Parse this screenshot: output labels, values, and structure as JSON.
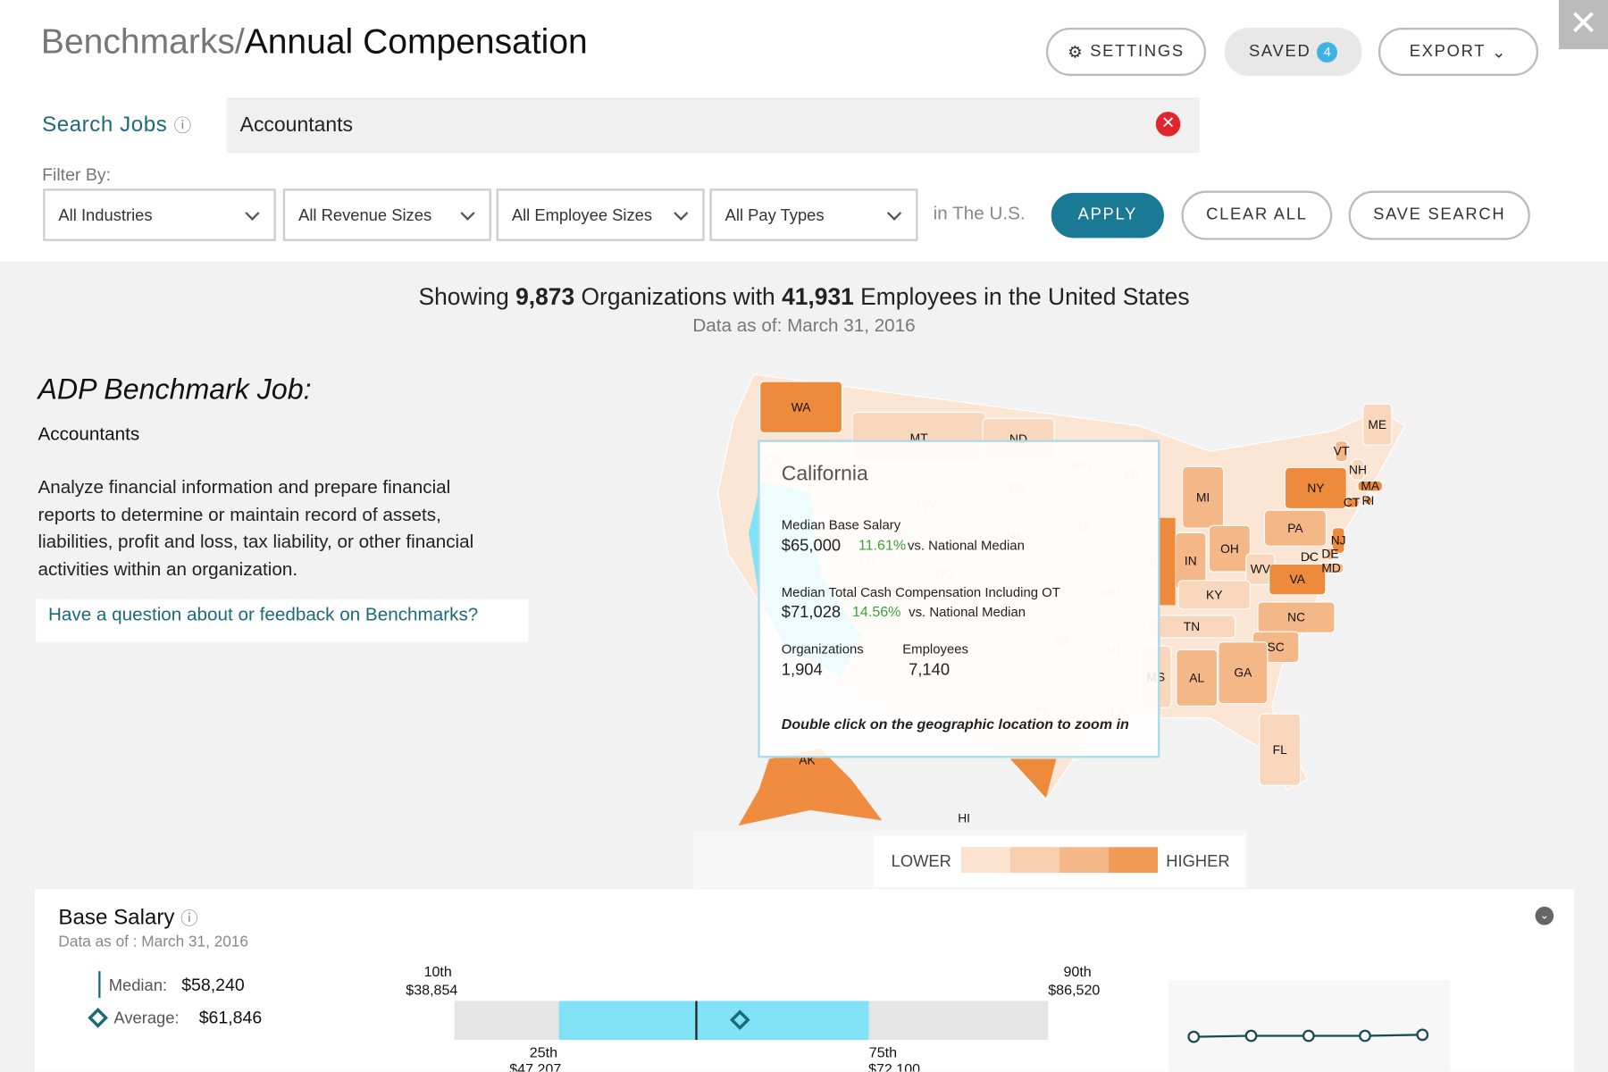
{
  "header": {
    "breadcrumb": "Benchmarks/",
    "title": "Annual Compensation",
    "settings": "SETTINGS",
    "saved": "SAVED",
    "saved_count": 4,
    "export": "EXPORT"
  },
  "search": {
    "label": "Search Jobs",
    "query": "Accountants"
  },
  "filters": {
    "label": "Filter By:",
    "dropdowns": [
      "All Industries",
      "All Revenue Sizes",
      "All Employee Sizes",
      "All Pay Types"
    ],
    "location": "in The U.S.",
    "apply": "APPLY",
    "clear": "CLEAR ALL",
    "save": "SAVE SEARCH"
  },
  "summary": {
    "parts": [
      "Showing",
      "9,873",
      "Organizations with",
      "41,931",
      "Employees in the United States"
    ],
    "date_label": "Data as of:",
    "date": "March 31, 2016"
  },
  "job": {
    "heading": "ADP Benchmark Job:",
    "name": "Accountants",
    "description": "Analyze financial information and prepare financial reports to determine or maintain record of assets, liabilities, profit and loss, tax liability, or other financial activities within an organization.",
    "feedback": "Have a question about or feedback on Benchmarks?"
  },
  "map": {
    "states": [
      "WA",
      "MT",
      "ND",
      "ME",
      "VT",
      "NH",
      "MA",
      "CT",
      "RI",
      "NY",
      "MI",
      "PA",
      "NJ",
      "DE",
      "DC",
      "MD",
      "OH",
      "IN",
      "WV",
      "VA",
      "KY",
      "NC",
      "TN",
      "SC",
      "AL",
      "GA",
      "FL",
      "AK",
      "HI",
      "MS",
      "OR",
      "MN",
      "WI",
      "SD",
      "WY",
      "IA",
      "NE",
      "UT",
      "CO",
      "MO",
      "CA",
      "AZ",
      "OK",
      "AR",
      "TX",
      "LA",
      "IL"
    ],
    "tooltip": {
      "state": "California",
      "base_label": "Median Base Salary",
      "base_value": "$65,000",
      "base_diff": "11.61%",
      "base_vs": "vs. National Median",
      "cash_label": "Median Total Cash Compensation Including OT",
      "cash_value": "$71,028",
      "cash_diff": "14.56%",
      "cash_vs": "vs. National Median",
      "org_label": "Organizations",
      "org_value": "1,904",
      "emp_label": "Employees",
      "emp_value": "7,140",
      "hint": "Double click on the geographic location to zoom in"
    },
    "legend": {
      "lower": "LOWER",
      "higher": "HIGHER"
    }
  },
  "base_salary": {
    "title": "Base Salary",
    "date_label": "Data as of :",
    "date": "March 31, 2016",
    "median_label": "Median:",
    "median": "$58,240",
    "average_label": "Average:",
    "average": "$61,846",
    "p10_label": "10th",
    "p10": "$38,854",
    "p25_label": "25th",
    "p25": "$47,207",
    "p75_label": "75th",
    "p75": "$72,100",
    "p90_label": "90th",
    "p90": "$86,520"
  }
}
